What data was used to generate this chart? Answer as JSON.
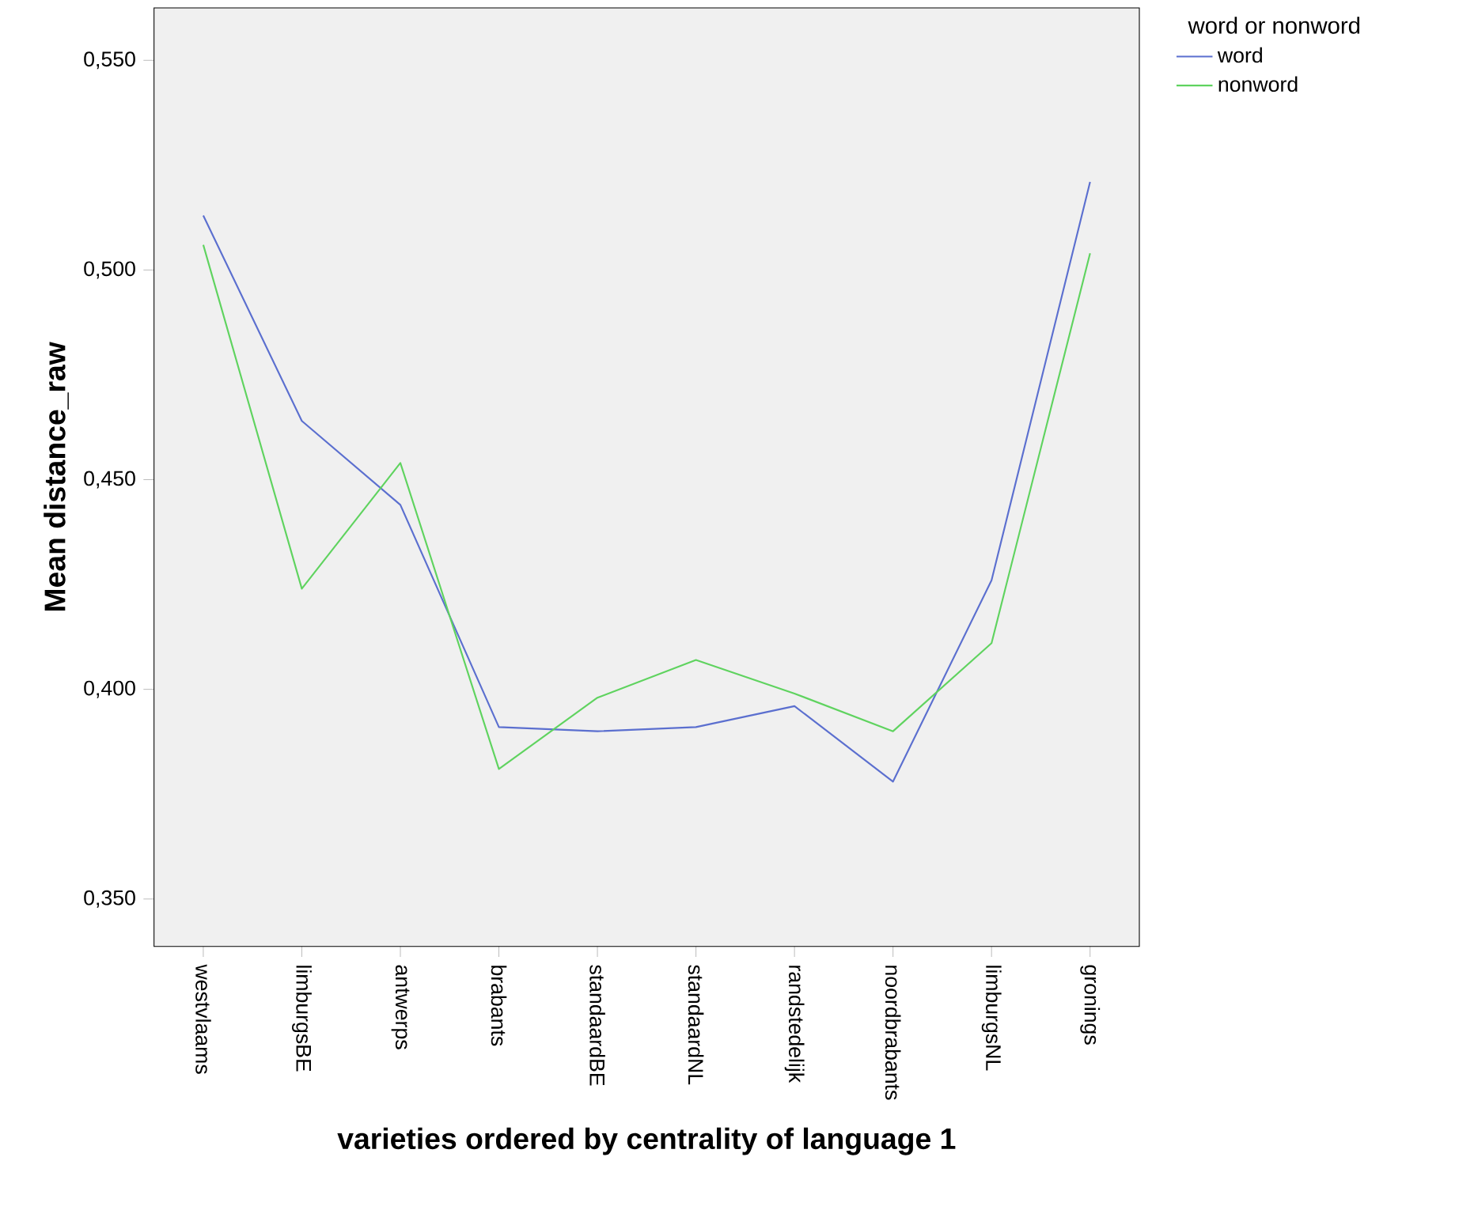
{
  "chart_data": {
    "type": "line",
    "xlabel": "varieties ordered by centrality of language 1",
    "ylabel": "Mean distance_raw",
    "legend_title": "word or nonword",
    "legend": "right",
    "grid": false,
    "marker": "none",
    "line_style": "solid",
    "categories": [
      "westvlaams",
      "limburgsBE",
      "antwerps",
      "brabants",
      "standaardBE",
      "standaardNL",
      "randstedelijk",
      "noordbrabants",
      "limburgsNL",
      "gronings"
    ],
    "ylim": [
      0.3387,
      0.5625
    ],
    "yticks": [
      {
        "value": 0.35,
        "label": "0,350"
      },
      {
        "value": 0.4,
        "label": "0,400"
      },
      {
        "value": 0.45,
        "label": "0,450"
      },
      {
        "value": 0.5,
        "label": "0,500"
      },
      {
        "value": 0.55,
        "label": "0,550"
      }
    ],
    "series": [
      {
        "name": "word",
        "color": "#5b6fcf",
        "values": [
          0.513,
          0.464,
          0.444,
          0.391,
          0.39,
          0.391,
          0.396,
          0.378,
          0.426,
          0.521
        ]
      },
      {
        "name": "nonword",
        "color": "#5fd35f",
        "values": [
          0.506,
          0.424,
          0.454,
          0.381,
          0.398,
          0.407,
          0.399,
          0.39,
          0.411,
          0.504
        ]
      }
    ]
  }
}
